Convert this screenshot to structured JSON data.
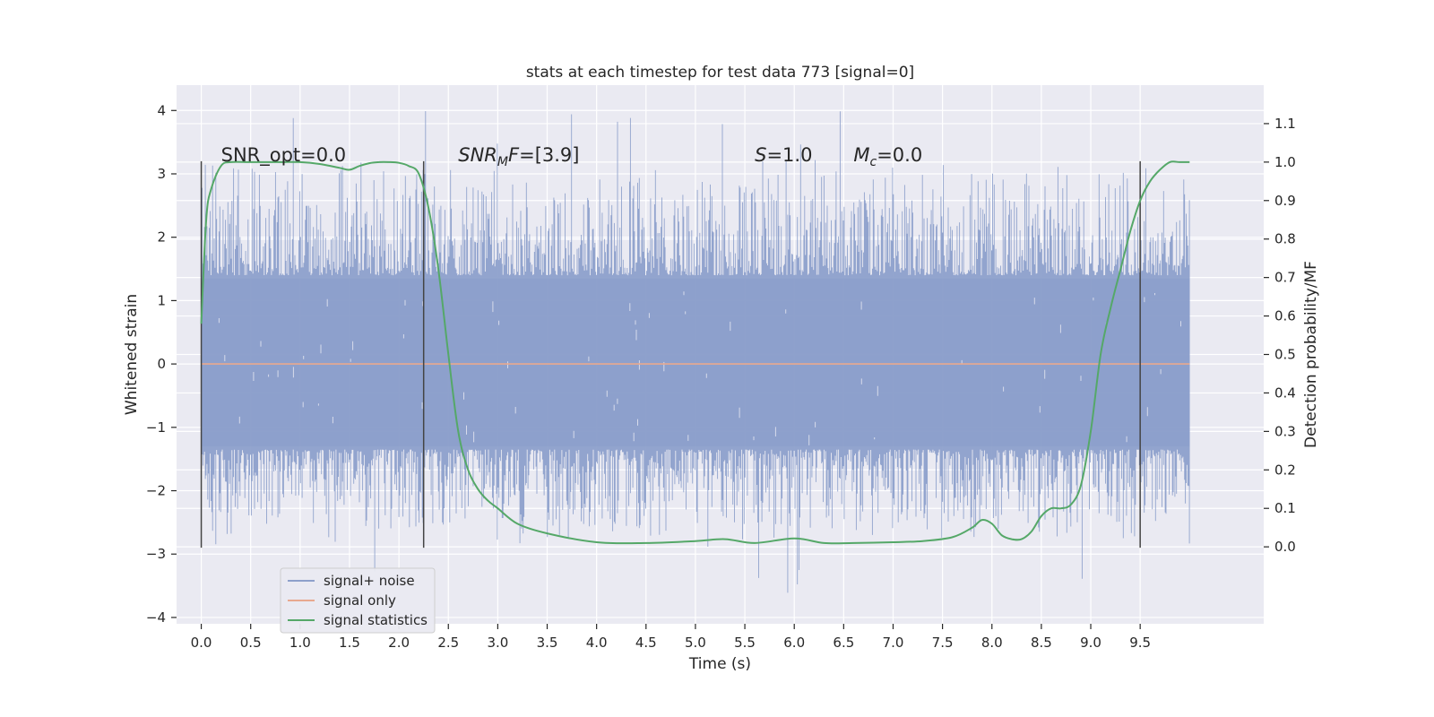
{
  "chart_data": {
    "type": "line",
    "title": "stats at each timestep for test data 773 [signal=0]",
    "xlabel": "Time (s)",
    "ylabel_left": "Whitened strain",
    "ylabel_right": "Detection probability/MF",
    "xlim": [
      -0.25,
      10.75
    ],
    "ylim_left": [
      -4.1,
      4.4
    ],
    "ylim_right": [
      -0.2,
      1.2
    ],
    "x_ticks": [
      "0.0",
      "0.5",
      "1.0",
      "1.5",
      "2.0",
      "2.5",
      "3.0",
      "3.5",
      "4.0",
      "4.5",
      "5.0",
      "5.5",
      "6.0",
      "6.5",
      "7.0",
      "7.5",
      "8.0",
      "8.5",
      "9.0",
      "9.5"
    ],
    "y_ticks_left": [
      "4",
      "3",
      "2",
      "1",
      "0",
      "−1",
      "−2",
      "−3",
      "−4"
    ],
    "y_ticks_right": [
      "1.1",
      "1.0",
      "0.9",
      "0.8",
      "0.7",
      "0.6",
      "0.5",
      "0.4",
      "0.3",
      "0.2",
      "0.1",
      "0.0"
    ],
    "grid": true,
    "annotations": [
      {
        "parts": [
          {
            "t": "SNR_opt=0.0",
            "style": "normal"
          }
        ],
        "x": 0.2,
        "y": 3.2
      },
      {
        "parts": [
          {
            "t": "SNR",
            "style": "italic"
          },
          {
            "t": "M",
            "style": "italic-sub"
          },
          {
            "t": "F",
            "style": "italic"
          },
          {
            "t": "=[3.9]",
            "style": "normal"
          }
        ],
        "x": 2.6,
        "y": 3.2
      },
      {
        "parts": [
          {
            "t": "S",
            "style": "italic"
          },
          {
            "t": "=1.0",
            "style": "normal"
          }
        ],
        "x": 5.6,
        "y": 3.2
      },
      {
        "parts": [
          {
            "t": "M",
            "style": "italic"
          },
          {
            "t": "c",
            "style": "italic-sub"
          },
          {
            "t": "=0.0",
            "style": "normal"
          }
        ],
        "x": 6.6,
        "y": 3.2
      }
    ],
    "vertical_markers": [
      {
        "x": 0.0,
        "y": [
          -2.9,
          3.2
        ]
      },
      {
        "x": 2.25,
        "y": [
          -2.9,
          3.2
        ]
      },
      {
        "x": 9.5,
        "y": [
          -2.9,
          3.2
        ]
      }
    ],
    "series": [
      {
        "name": "signal+ noise",
        "color": "#8da0cb",
        "axis": "left",
        "kind": "noise",
        "x_range": [
          0.0,
          10.0
        ],
        "core_amplitude": [
          -1.3,
          1.35
        ],
        "peak_max": 4.05,
        "peak_min": -3.75
      },
      {
        "name": "signal only",
        "color": "#e8a98f",
        "axis": "left",
        "kind": "flat",
        "x": [
          0.0,
          10.0
        ],
        "y": [
          0.0,
          0.0
        ]
      },
      {
        "name": "signal statistics",
        "color": "#55a868",
        "axis": "right",
        "kind": "line",
        "x": [
          0.0,
          0.05,
          0.1,
          0.2,
          0.3,
          0.5,
          0.8,
          1.0,
          1.2,
          1.4,
          1.5,
          1.6,
          1.7,
          1.8,
          1.9,
          2.0,
          2.1,
          2.2,
          2.3,
          2.4,
          2.5,
          2.6,
          2.7,
          2.8,
          2.9,
          3.0,
          3.2,
          3.5,
          4.0,
          4.5,
          5.0,
          5.3,
          5.6,
          6.0,
          6.3,
          6.6,
          7.0,
          7.3,
          7.6,
          7.8,
          7.9,
          8.0,
          8.1,
          8.2,
          8.3,
          8.4,
          8.5,
          8.6,
          8.7,
          8.8,
          8.9,
          9.0,
          9.1,
          9.2,
          9.3,
          9.4,
          9.5,
          9.6,
          9.7,
          9.8,
          9.9,
          10.0
        ],
        "y": [
          0.58,
          0.85,
          0.93,
          0.99,
          1.0,
          1.0,
          1.0,
          1.0,
          0.995,
          0.985,
          0.98,
          0.99,
          0.997,
          1.0,
          1.0,
          0.998,
          0.99,
          0.97,
          0.88,
          0.72,
          0.5,
          0.3,
          0.2,
          0.15,
          0.12,
          0.1,
          0.06,
          0.035,
          0.012,
          0.01,
          0.015,
          0.02,
          0.01,
          0.022,
          0.01,
          0.01,
          0.012,
          0.015,
          0.025,
          0.05,
          0.07,
          0.06,
          0.03,
          0.02,
          0.02,
          0.04,
          0.08,
          0.1,
          0.1,
          0.11,
          0.16,
          0.3,
          0.5,
          0.62,
          0.72,
          0.82,
          0.9,
          0.95,
          0.98,
          1.0,
          1.0,
          1.0
        ]
      }
    ],
    "legend": {
      "placement": "lower-left",
      "entries": [
        "signal+ noise",
        "signal only",
        "signal statistics"
      ]
    }
  }
}
